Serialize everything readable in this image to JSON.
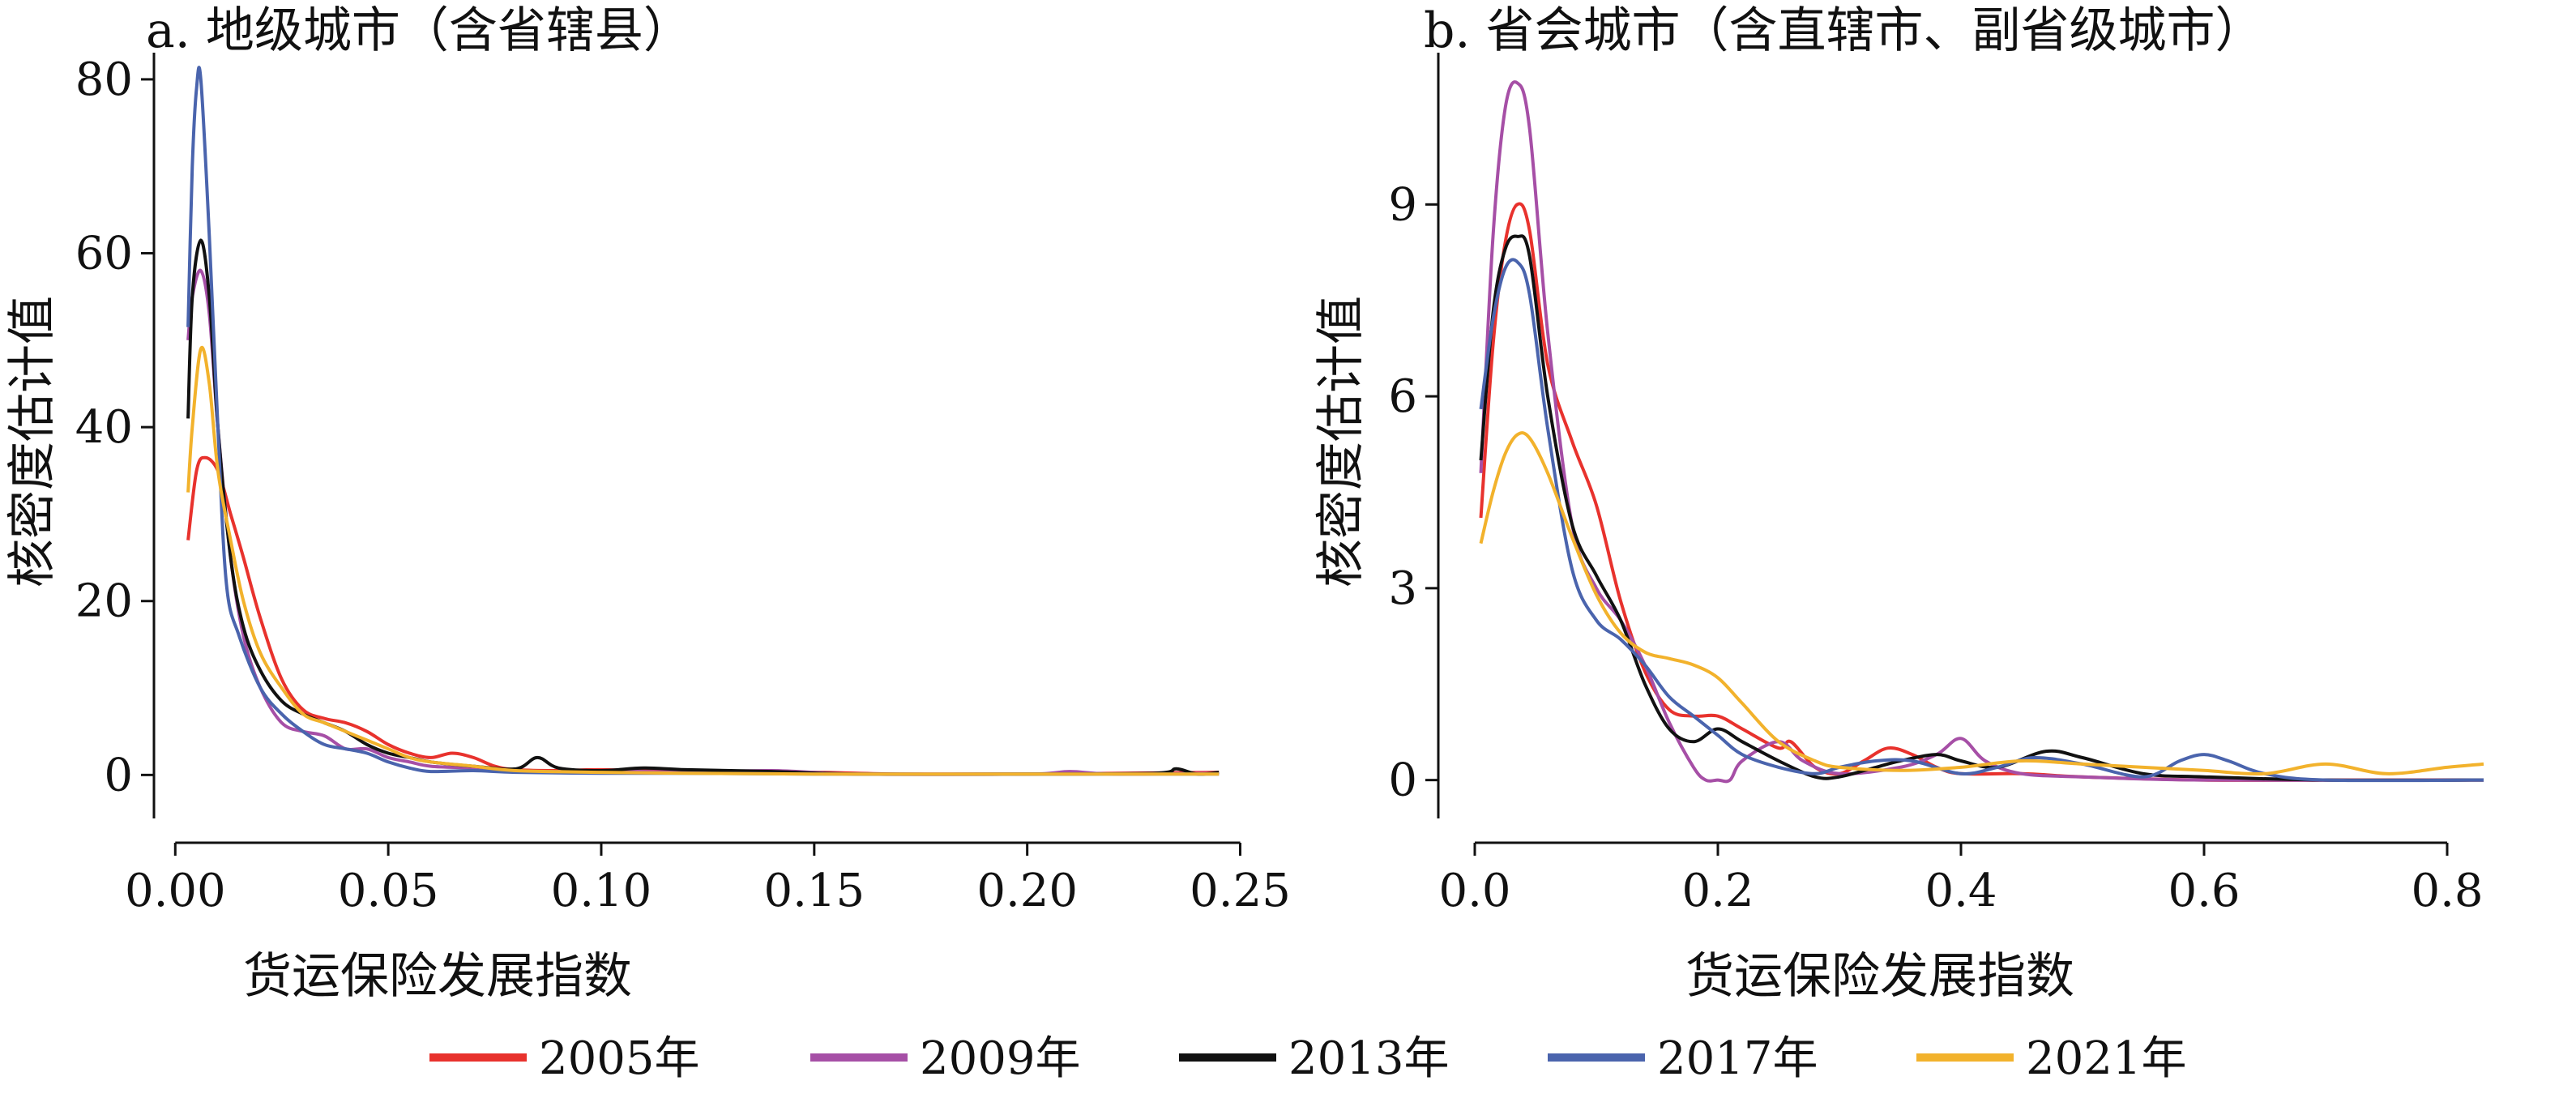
{
  "legend": {
    "items": [
      {
        "label": "2005年",
        "color": "#e8322d"
      },
      {
        "label": "2009年",
        "color": "#a64fa6"
      },
      {
        "label": "2013年",
        "color": "#111111"
      },
      {
        "label": "2017年",
        "color": "#4a64ad"
      },
      {
        "label": "2021年",
        "color": "#f2b22c"
      }
    ],
    "placement": "bottom"
  },
  "chart_data": [
    {
      "type": "line",
      "title": "a. 地级城市（含省辖县）",
      "xlabel": "货运保险发展指数",
      "ylabel": "核密度估计值",
      "xlim": [
        -0.005,
        0.248
      ],
      "ylim": [
        -5,
        84
      ],
      "xticks": [
        0.0,
        0.05,
        0.1,
        0.15,
        0.2,
        0.25
      ],
      "xtick_labels": [
        "0.00",
        "0.05",
        "0.10",
        "0.15",
        "0.20",
        "0.25"
      ],
      "yticks": [
        0,
        20,
        40,
        60,
        80
      ],
      "ytick_labels": [
        "0",
        "20",
        "40",
        "60",
        "80"
      ],
      "grid": false,
      "series": [
        {
          "name": "2005年",
          "color": "#e8322d",
          "x": [
            0.003,
            0.005,
            0.007,
            0.01,
            0.013,
            0.016,
            0.02,
            0.025,
            0.03,
            0.035,
            0.04,
            0.045,
            0.05,
            0.055,
            0.06,
            0.065,
            0.07,
            0.075,
            0.08,
            0.09,
            0.1,
            0.12,
            0.15,
            0.17,
            0.2,
            0.245
          ],
          "y": [
            27,
            35,
            36.5,
            35,
            30,
            25,
            18,
            11,
            7.5,
            6.5,
            6,
            5,
            3.5,
            2.5,
            2,
            2.5,
            2,
            1,
            0.6,
            0.5,
            0.6,
            0.4,
            0.3,
            0.1,
            0.1,
            0.3
          ]
        },
        {
          "name": "2009年",
          "color": "#a64fa6",
          "x": [
            0.003,
            0.004,
            0.006,
            0.008,
            0.01,
            0.013,
            0.016,
            0.02,
            0.025,
            0.03,
            0.035,
            0.04,
            0.045,
            0.05,
            0.055,
            0.06,
            0.07,
            0.08,
            0.09,
            0.1,
            0.12,
            0.14,
            0.16,
            0.2,
            0.21,
            0.22,
            0.245
          ],
          "y": [
            50,
            55,
            58,
            53,
            40,
            25,
            16,
            10,
            6,
            5,
            4.5,
            3,
            3,
            2,
            1.5,
            1,
            0.8,
            0.5,
            0.4,
            0.5,
            0.3,
            0.5,
            0.1,
            0.1,
            0.4,
            0.1,
            0.2
          ]
        },
        {
          "name": "2013年",
          "color": "#111111",
          "x": [
            0.003,
            0.004,
            0.006,
            0.008,
            0.01,
            0.013,
            0.016,
            0.02,
            0.025,
            0.03,
            0.035,
            0.04,
            0.045,
            0.05,
            0.055,
            0.06,
            0.07,
            0.08,
            0.085,
            0.09,
            0.1,
            0.11,
            0.12,
            0.14,
            0.16,
            0.2,
            0.23,
            0.235,
            0.24,
            0.245
          ],
          "y": [
            41,
            55,
            61.5,
            55,
            40,
            25,
            17,
            12,
            8.5,
            7,
            6,
            5,
            3.5,
            2.5,
            2,
            1.5,
            1,
            0.7,
            2,
            0.8,
            0.5,
            0.8,
            0.6,
            0.4,
            0.1,
            0.1,
            0.2,
            0.7,
            0.1,
            0.3
          ]
        },
        {
          "name": "2017年",
          "color": "#4a64ad",
          "x": [
            0.003,
            0.004,
            0.005,
            0.006,
            0.008,
            0.01,
            0.012,
            0.015,
            0.02,
            0.025,
            0.03,
            0.035,
            0.04,
            0.045,
            0.05,
            0.055,
            0.06,
            0.07,
            0.08,
            0.1,
            0.12,
            0.15,
            0.2,
            0.245
          ],
          "y": [
            51.5,
            70,
            79,
            80,
            62,
            40,
            22,
            16,
            10,
            7,
            5,
            3.5,
            3,
            2.5,
            1.5,
            0.8,
            0.4,
            0.5,
            0.3,
            0.2,
            0.2,
            0.1,
            0.1,
            0.1
          ]
        },
        {
          "name": "2021年",
          "color": "#f2b22c",
          "x": [
            0.003,
            0.004,
            0.006,
            0.008,
            0.01,
            0.013,
            0.016,
            0.02,
            0.025,
            0.03,
            0.035,
            0.04,
            0.045,
            0.05,
            0.055,
            0.06,
            0.07,
            0.08,
            0.1,
            0.12,
            0.15,
            0.2,
            0.245
          ],
          "y": [
            32.5,
            40,
            49,
            45,
            35,
            27,
            20,
            14,
            10,
            7,
            6,
            5,
            4,
            3,
            2,
            1.5,
            1,
            0.5,
            0.3,
            0.2,
            0.1,
            0.1,
            0.1
          ]
        }
      ]
    },
    {
      "type": "line",
      "title": "b. 省会城市（含直辖市、副省级城市）",
      "xlabel": "货运保险发展指数",
      "ylabel": "核密度估计值",
      "xlim": [
        -0.03,
        0.86
      ],
      "ylim": [
        -0.6,
        11.5
      ],
      "xticks": [
        0.0,
        0.2,
        0.4,
        0.6,
        0.8
      ],
      "xtick_labels": [
        "0.0",
        "0.2",
        "0.4",
        "0.6",
        "0.8"
      ],
      "yticks": [
        0,
        3,
        6,
        9
      ],
      "ytick_labels": [
        "0",
        "3",
        "6",
        "9"
      ],
      "grid": false,
      "series": [
        {
          "name": "2005年",
          "color": "#e8322d",
          "x": [
            0.005,
            0.015,
            0.025,
            0.035,
            0.045,
            0.06,
            0.08,
            0.1,
            0.12,
            0.14,
            0.16,
            0.18,
            0.2,
            0.22,
            0.25,
            0.26,
            0.28,
            0.3,
            0.32,
            0.34,
            0.36,
            0.38,
            0.4,
            0.45,
            0.5,
            0.6,
            0.7,
            0.83
          ],
          "y": [
            4.1,
            6.8,
            8.4,
            9.0,
            8.6,
            6.5,
            5.3,
            4.3,
            2.8,
            1.7,
            1.1,
            1.0,
            1.0,
            0.8,
            0.5,
            0.6,
            0.2,
            0.1,
            0.3,
            0.5,
            0.4,
            0.2,
            0.1,
            0.1,
            0.05,
            0.0,
            0.0,
            0.0
          ]
        },
        {
          "name": "2009年",
          "color": "#a64fa6",
          "x": [
            0.005,
            0.015,
            0.025,
            0.035,
            0.045,
            0.06,
            0.08,
            0.1,
            0.12,
            0.14,
            0.16,
            0.18,
            0.19,
            0.2,
            0.21,
            0.22,
            0.25,
            0.27,
            0.3,
            0.35,
            0.38,
            0.4,
            0.42,
            0.45,
            0.5,
            0.6,
            0.83
          ],
          "y": [
            4.8,
            8.5,
            10.5,
            10.9,
            10.2,
            7.0,
            4.0,
            3.0,
            2.5,
            1.8,
            0.9,
            0.2,
            0.0,
            0.0,
            0.0,
            0.3,
            0.6,
            0.3,
            0.1,
            0.2,
            0.4,
            0.65,
            0.3,
            0.1,
            0.05,
            0.0,
            0.0
          ]
        },
        {
          "name": "2013年",
          "color": "#111111",
          "x": [
            0.005,
            0.015,
            0.025,
            0.035,
            0.045,
            0.06,
            0.08,
            0.1,
            0.12,
            0.14,
            0.16,
            0.18,
            0.2,
            0.22,
            0.25,
            0.28,
            0.3,
            0.33,
            0.35,
            0.38,
            0.4,
            0.43,
            0.47,
            0.5,
            0.55,
            0.6,
            0.7,
            0.83
          ],
          "y": [
            5.0,
            7.3,
            8.3,
            8.5,
            8.2,
            6.0,
            4.0,
            3.2,
            2.5,
            1.5,
            0.8,
            0.6,
            0.8,
            0.6,
            0.3,
            0.05,
            0.05,
            0.2,
            0.3,
            0.4,
            0.3,
            0.2,
            0.45,
            0.35,
            0.1,
            0.05,
            0.0,
            0.0
          ]
        },
        {
          "name": "2017年",
          "color": "#4a64ad",
          "x": [
            0.005,
            0.015,
            0.025,
            0.035,
            0.045,
            0.06,
            0.08,
            0.1,
            0.12,
            0.14,
            0.16,
            0.18,
            0.2,
            0.22,
            0.25,
            0.28,
            0.3,
            0.33,
            0.36,
            0.4,
            0.43,
            0.46,
            0.5,
            0.55,
            0.58,
            0.6,
            0.62,
            0.65,
            0.7,
            0.83
          ],
          "y": [
            5.8,
            7.2,
            8.0,
            8.1,
            7.6,
            5.5,
            3.3,
            2.5,
            2.2,
            1.8,
            1.3,
            1.0,
            0.7,
            0.4,
            0.2,
            0.1,
            0.2,
            0.3,
            0.3,
            0.1,
            0.2,
            0.35,
            0.25,
            0.05,
            0.3,
            0.4,
            0.3,
            0.1,
            0.0,
            0.0
          ]
        },
        {
          "name": "2021年",
          "color": "#f2b22c",
          "x": [
            0.005,
            0.015,
            0.025,
            0.035,
            0.045,
            0.06,
            0.08,
            0.1,
            0.12,
            0.14,
            0.16,
            0.18,
            0.2,
            0.22,
            0.25,
            0.28,
            0.3,
            0.35,
            0.4,
            0.45,
            0.5,
            0.55,
            0.6,
            0.65,
            0.7,
            0.75,
            0.8,
            0.83
          ],
          "y": [
            3.7,
            4.5,
            5.1,
            5.4,
            5.35,
            4.8,
            3.8,
            2.9,
            2.3,
            2.0,
            1.9,
            1.8,
            1.6,
            1.2,
            0.6,
            0.3,
            0.2,
            0.15,
            0.2,
            0.3,
            0.25,
            0.2,
            0.15,
            0.1,
            0.25,
            0.1,
            0.2,
            0.25
          ]
        }
      ]
    }
  ]
}
